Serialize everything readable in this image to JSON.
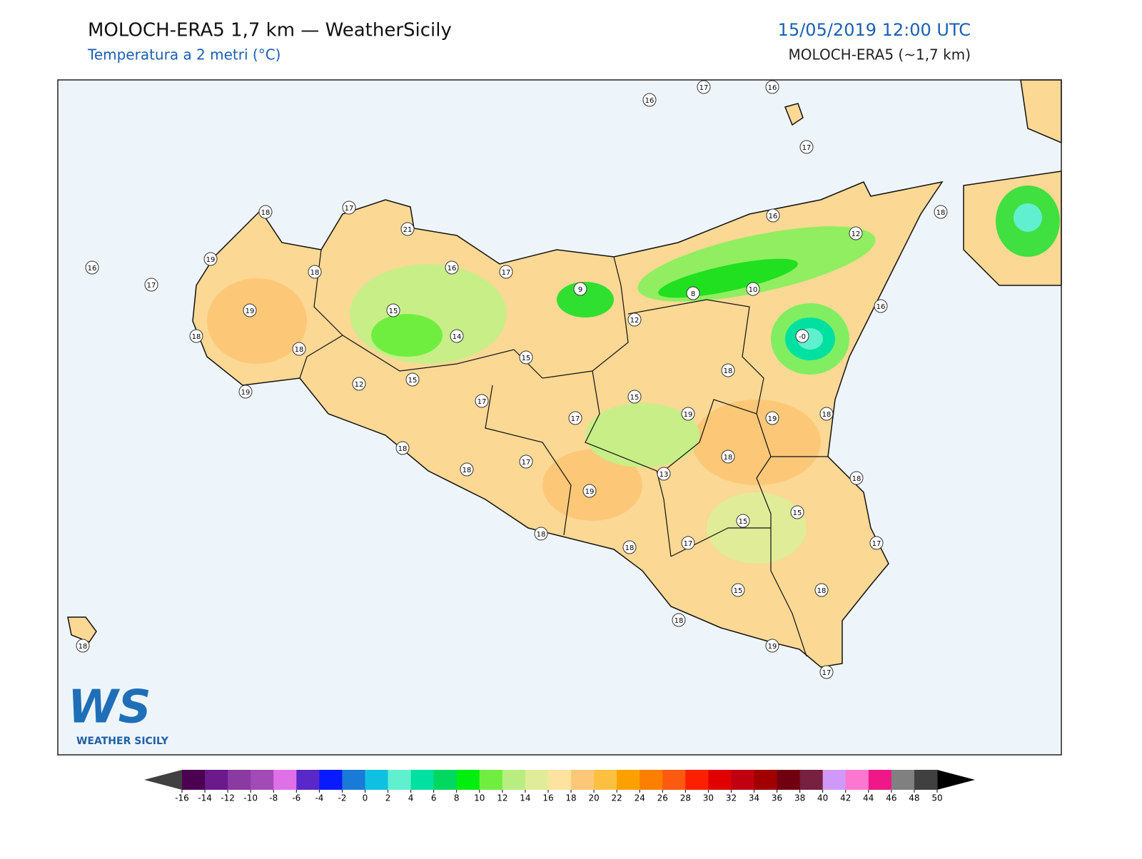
{
  "header": {
    "title": "MOLOCH-ERA5 1,7 km — WeatherSicily",
    "subtitle": "Temperatura a 2 metri (°C)",
    "date": "15/05/2019 12:00 UTC",
    "model": "MOLOCH-ERA5 (~1,7 km)"
  },
  "map": {
    "stations": [
      "16",
      "17",
      "16",
      "17",
      "16",
      "17",
      "18",
      "17",
      "19",
      "18",
      "21",
      "19",
      "18",
      "18",
      "19",
      "16",
      "17",
      "15",
      "14",
      "9",
      "8",
      "10",
      "16",
      "12",
      "18",
      "16",
      "12",
      "-0",
      "15",
      "12",
      "15",
      "18",
      "17",
      "15",
      "17",
      "19",
      "19",
      "18",
      "18",
      "17",
      "18",
      "18",
      "13",
      "18",
      "19",
      "15",
      "15",
      "18",
      "18",
      "17",
      "17",
      "15",
      "18",
      "18",
      "18",
      "19",
      "17"
    ]
  },
  "colorbar": {
    "ticks": [
      -16,
      -14,
      -12,
      -10,
      -8,
      -6,
      -4,
      -2,
      0,
      2,
      4,
      6,
      8,
      10,
      12,
      14,
      16,
      18,
      20,
      22,
      24,
      26,
      28,
      30,
      32,
      34,
      36,
      38,
      40,
      42,
      44,
      46,
      48,
      50
    ],
    "colors": [
      "#4b0050",
      "#6a1a8a",
      "#8a3aa0",
      "#a24ab5",
      "#e070e8",
      "#5a28c8",
      "#0a1aff",
      "#1a7ad8",
      "#10c0e0",
      "#60f0d0",
      "#00e0a0",
      "#00d860",
      "#00ee10",
      "#70ee40",
      "#b8ee80",
      "#e0ec98",
      "#fee2a0",
      "#fcc878",
      "#fcc040",
      "#fca000",
      "#fc8000",
      "#fc5a10",
      "#fc2000",
      "#e00000",
      "#c00010",
      "#a00000",
      "#700010",
      "#782040",
      "#d098f8",
      "#fc78d0",
      "#f01888",
      "#808080",
      "#404040"
    ],
    "under_color": "#404040",
    "over_color": "#000000"
  },
  "logo": {
    "mark": "WS",
    "name": "WEATHER SICILY"
  }
}
